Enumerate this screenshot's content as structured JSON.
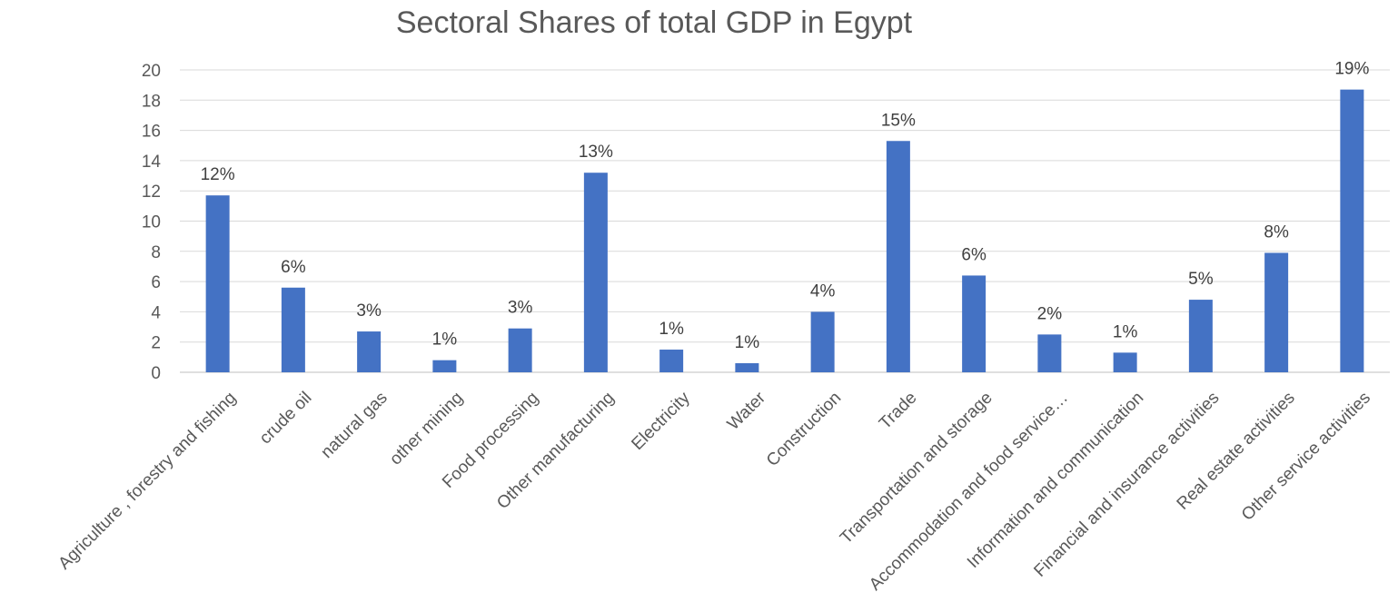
{
  "chart_data": {
    "type": "bar",
    "title": "Sectoral Shares of total GDP in Egypt",
    "xlabel": "",
    "ylabel": "",
    "ylim": [
      0,
      20
    ],
    "yticks": [
      0,
      2,
      4,
      6,
      8,
      10,
      12,
      14,
      16,
      18,
      20
    ],
    "grid": true,
    "legend": "none",
    "bar_color": "#4472C4",
    "categories": [
      "Agriculture , forestry and fishing",
      "crude oil",
      "natural gas",
      "other mining",
      "Food processing",
      "Other manufacturing",
      "Electricity",
      "Water",
      "Construction",
      "Trade",
      "Transportation and storage",
      "Accommodation and food service…",
      "Information and communication",
      "Financial and insurance activities",
      "Real estate activities",
      "Other service activities"
    ],
    "values": [
      11.7,
      5.6,
      2.7,
      0.8,
      2.9,
      13.2,
      1.5,
      0.6,
      4.0,
      15.3,
      6.4,
      2.5,
      1.3,
      4.8,
      7.9,
      18.7
    ],
    "data_labels": [
      "12%",
      "6%",
      "3%",
      "1%",
      "3%",
      "13%",
      "1%",
      "1%",
      "4%",
      "15%",
      "6%",
      "2%",
      "1%",
      "5%",
      "8%",
      "19%"
    ]
  }
}
